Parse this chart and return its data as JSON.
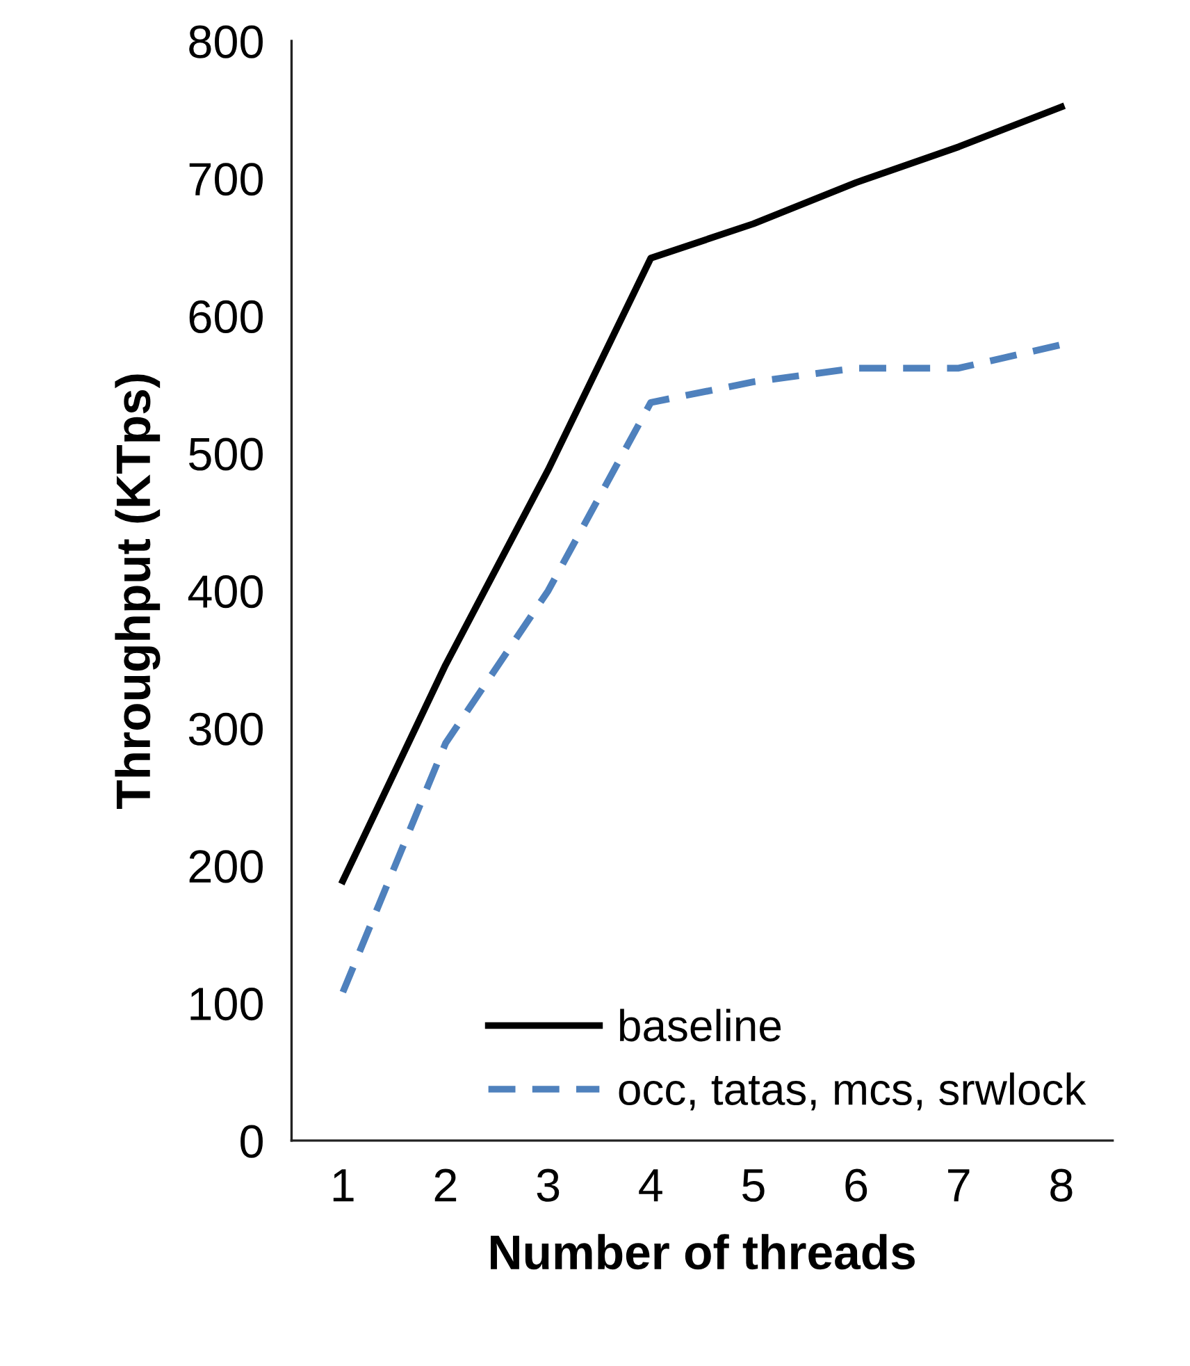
{
  "chart_data": {
    "type": "line",
    "xlabel": "Number of threads",
    "ylabel": "Throughput (KTps)",
    "categories": [
      "1",
      "2",
      "3",
      "4",
      "5",
      "6",
      "7",
      "8"
    ],
    "series": [
      {
        "name": "baseline",
        "color": "#000000",
        "line_style": "solid",
        "values": [
          189,
          346,
          488,
          642,
          667,
          697,
          723,
          752
        ]
      },
      {
        "name": "occ, tatas, mcs, srwlock",
        "color": "#4f81bd",
        "line_style": "dashed",
        "values": [
          108,
          289,
          400,
          537,
          552,
          562,
          562,
          579
        ]
      }
    ],
    "ylim": [
      0,
      800
    ],
    "yticks": [
      0,
      100,
      200,
      300,
      400,
      500,
      600,
      700,
      800
    ],
    "grid": false,
    "legend": "bottom right",
    "marker": "none"
  }
}
